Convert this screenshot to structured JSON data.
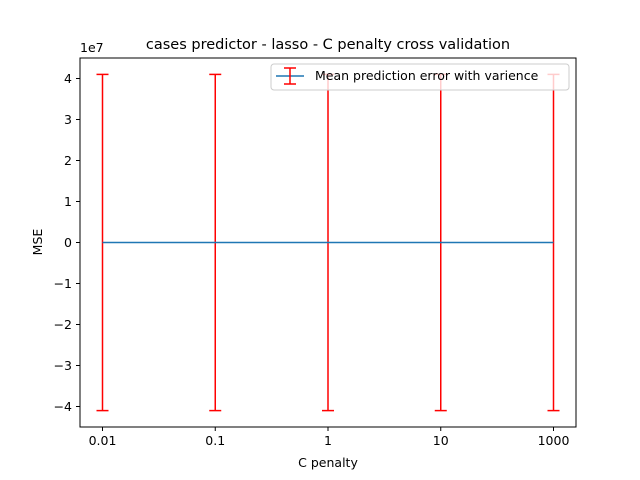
{
  "chart_data": {
    "type": "line",
    "title": "cases predictor - lasso - C penalty cross validation",
    "xlabel": "C penalty",
    "ylabel": "MSE",
    "y_offset_label": "1e7",
    "categories": [
      "0.01",
      "0.1",
      "1",
      "10",
      "1000"
    ],
    "y_ticks": [
      -4,
      -3,
      -2,
      -1,
      0,
      1,
      2,
      3,
      4
    ],
    "y_tick_labels": [
      "−4",
      "−3",
      "−2",
      "−1",
      "0",
      "1",
      "2",
      "3",
      "4"
    ],
    "ylim": [
      -4.5,
      4.5
    ],
    "y_scale": 10000000,
    "grid": false,
    "legend_placement": "upper right",
    "series": [
      {
        "name": "Mean prediction error with varience",
        "values": [
          0.0,
          0.0,
          0.0,
          0.0,
          0.0
        ],
        "error": [
          4.1,
          4.1,
          4.1,
          4.1,
          4.1
        ],
        "line_color": "#1f77b4",
        "error_color": "#ff0000"
      }
    ]
  }
}
